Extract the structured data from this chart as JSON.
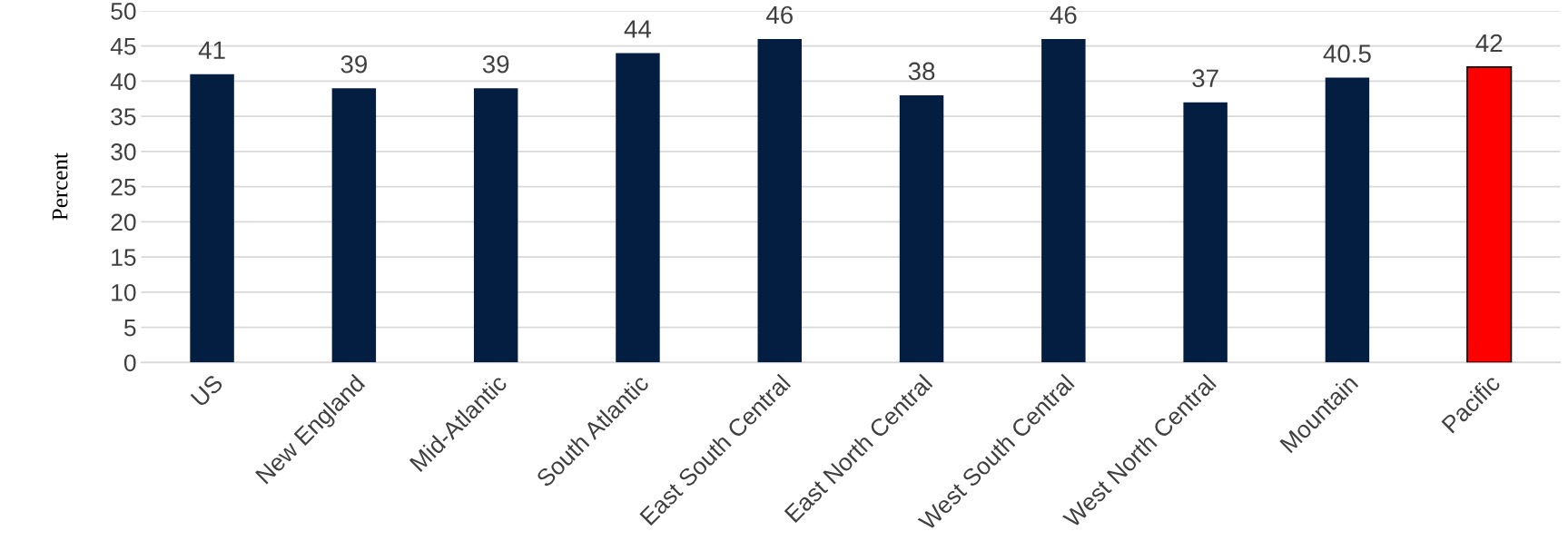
{
  "chart_data": {
    "type": "bar",
    "ylabel": "Percent",
    "categories": [
      "US",
      "New England",
      "Mid-Atlantic",
      "South Atlantic",
      "East South Central",
      "East North Central",
      "West South Central",
      "West North Central",
      "Mountain",
      "Pacific"
    ],
    "values": [
      41,
      39,
      39,
      44,
      46,
      38,
      46,
      37,
      40.5,
      42
    ],
    "colors": [
      "#041e42",
      "#041e42",
      "#041e42",
      "#041e42",
      "#041e42",
      "#041e42",
      "#041e42",
      "#041e42",
      "#041e42",
      "#ff0000"
    ],
    "ylim": [
      0,
      50
    ],
    "yticks": [
      0,
      5,
      10,
      15,
      20,
      25,
      30,
      35,
      40,
      45,
      50
    ],
    "grid": "y",
    "data_labels": true
  }
}
